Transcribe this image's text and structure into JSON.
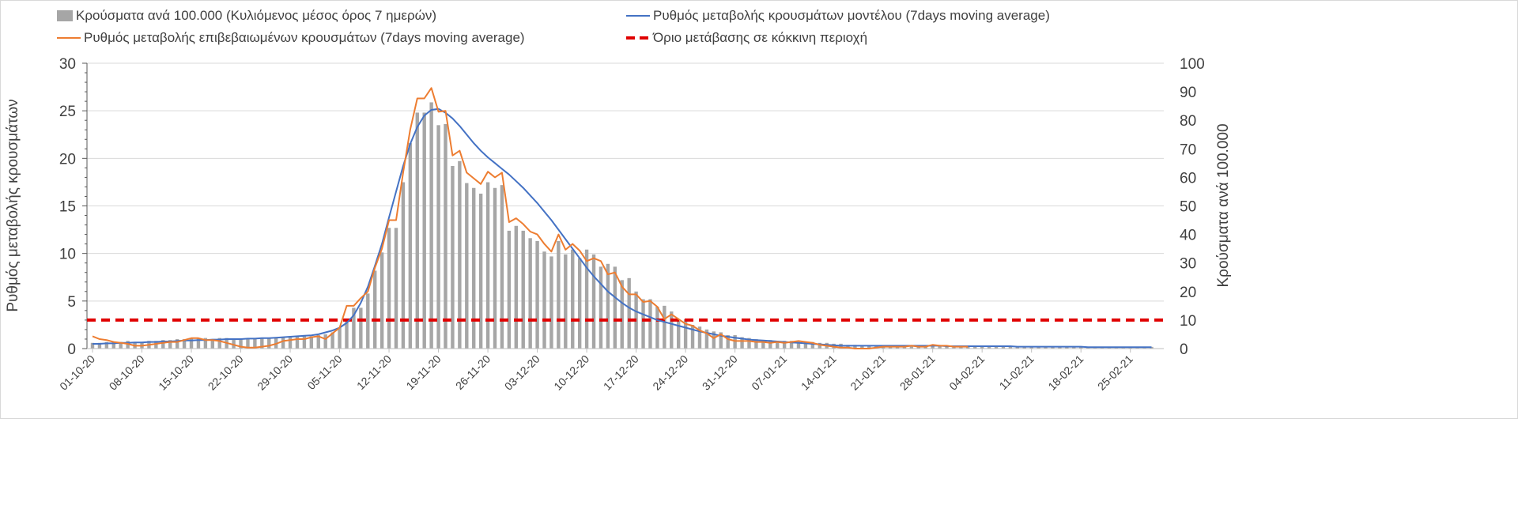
{
  "chart_data": {
    "type": "bar+line",
    "start_date": "01-10-20",
    "x_tick_labels": [
      "01-10-20",
      "08-10-20",
      "15-10-20",
      "22-10-20",
      "29-10-20",
      "05-11-20",
      "12-11-20",
      "19-11-20",
      "26-11-20",
      "03-12-20",
      "10-12-20",
      "17-12-20",
      "24-12-20",
      "31-12-20",
      "07-01-21",
      "14-01-21",
      "21-01-21",
      "28-01-21",
      "04-02-21",
      "11-02-21",
      "18-02-21",
      "25-02-21"
    ],
    "y_left": {
      "label": "Ρυθμός μεταβολής κρουσμάτων",
      "lim": [
        0,
        30
      ],
      "ticks": [
        "0",
        "5",
        "10",
        "15",
        "20",
        "25",
        "30"
      ]
    },
    "y_right": {
      "label": "Κρούσματα ανά 100.000",
      "lim": [
        0,
        100
      ],
      "ticks": [
        "0",
        "10",
        "20",
        "30",
        "40",
        "50",
        "60",
        "70",
        "80",
        "90",
        "100"
      ]
    },
    "grid": true,
    "legend_position": "top",
    "series": [
      {
        "name": "Κρούσματα ανά 100.000 (Κυλιόμενος μέσος όρος 7 ημερών)",
        "type": "bar",
        "axis": "right",
        "color": "#a6a6a6",
        "values": [
          2,
          2,
          2.3,
          2.3,
          2.3,
          2.7,
          2.3,
          2.3,
          2.7,
          2.7,
          3,
          3,
          3.3,
          3.3,
          3.7,
          3.7,
          3.7,
          3.3,
          3.7,
          3.7,
          3.3,
          3.3,
          3.3,
          3.7,
          3.7,
          3.7,
          4,
          4,
          4,
          4.3,
          4.3,
          4.3,
          4.7,
          5,
          5.7,
          7.3,
          10,
          14.3,
          14.3,
          19.3,
          27.3,
          33.7,
          42.3,
          42.3,
          58.3,
          72,
          82.7,
          82.7,
          86.3,
          78.3,
          78.7,
          64,
          65.7,
          58,
          56.3,
          54.3,
          58.3,
          56.3,
          57.3,
          41.3,
          43,
          41.3,
          38.7,
          37.7,
          34,
          32.3,
          37.7,
          33,
          34.7,
          31.7,
          34.7,
          33,
          28.7,
          29.7,
          28.7,
          24,
          24.7,
          20,
          17.3,
          17.3,
          14.7,
          15,
          13,
          9.7,
          10.3,
          8.3,
          7.7,
          6.7,
          6,
          5.7,
          4.7,
          4.7,
          4,
          3.7,
          3.3,
          3,
          3,
          2.7,
          2.7,
          2.7,
          2.3,
          2.3,
          2.3,
          2,
          2,
          1.7,
          1.7,
          1.3,
          1.3,
          1,
          1,
          1,
          1,
          1,
          1,
          1,
          1,
          1,
          1,
          1,
          1,
          0.8,
          0.8,
          0.8,
          0.8,
          0.8,
          0.8,
          0.8,
          0.8,
          0.8,
          0.8,
          0.7,
          0.7,
          0.7,
          0.7,
          0.7,
          0.7,
          0.7,
          0.7,
          0.7,
          0.7,
          0.6,
          0.6,
          0.6,
          0.6,
          0.6,
          0.6,
          0.6,
          0.6,
          0.6,
          0.6
        ]
      },
      {
        "name": "Ρυθμός μεταβολής κρουσμάτων μοντέλου (7days moving average)",
        "type": "line",
        "axis": "left",
        "color": "#4472c4",
        "values": [
          0.5,
          0.5,
          0.55,
          0.55,
          0.6,
          0.6,
          0.65,
          0.65,
          0.7,
          0.7,
          0.75,
          0.75,
          0.8,
          0.85,
          0.85,
          0.9,
          0.9,
          0.95,
          0.95,
          1.0,
          1.0,
          1.0,
          1.05,
          1.05,
          1.1,
          1.1,
          1.15,
          1.2,
          1.25,
          1.3,
          1.35,
          1.4,
          1.5,
          1.7,
          1.9,
          2.2,
          2.7,
          3.5,
          4.8,
          6.5,
          8.7,
          11,
          13.8,
          16.5,
          19.2,
          21.5,
          23.3,
          24.5,
          25.1,
          25.2,
          24.8,
          24.2,
          23.4,
          22.5,
          21.6,
          20.8,
          20.1,
          19.5,
          18.9,
          18.3,
          17.6,
          16.9,
          16.1,
          15.3,
          14.4,
          13.5,
          12.5,
          11.5,
          10.5,
          9.5,
          8.5,
          7.6,
          6.8,
          6.0,
          5.4,
          4.8,
          4.3,
          3.9,
          3.6,
          3.3,
          3.0,
          2.8,
          2.6,
          2.4,
          2.2,
          2.0,
          1.8,
          1.65,
          1.5,
          1.35,
          1.25,
          1.15,
          1.05,
          0.95,
          0.9,
          0.85,
          0.8,
          0.75,
          0.7,
          0.65,
          0.6,
          0.55,
          0.5,
          0.45,
          0.4,
          0.35,
          0.3,
          0.3,
          0.3,
          0.3,
          0.3,
          0.3,
          0.3,
          0.3,
          0.3,
          0.3,
          0.3,
          0.3,
          0.3,
          0.3,
          0.3,
          0.25,
          0.25,
          0.25,
          0.25,
          0.25,
          0.25,
          0.25,
          0.25,
          0.25,
          0.25,
          0.2,
          0.2,
          0.2,
          0.2,
          0.2,
          0.2,
          0.2,
          0.2,
          0.2,
          0.2,
          0.15,
          0.15,
          0.15,
          0.15,
          0.15,
          0.15,
          0.15,
          0.15,
          0.15,
          0.15
        ]
      },
      {
        "name": "Ρυθμός μεταβολής επιβεβαιωμένων κρουσμάτων (7days moving average)",
        "type": "line",
        "axis": "left",
        "color": "#ed7d31",
        "values": [
          1.3,
          1.0,
          0.9,
          0.7,
          0.6,
          0.5,
          0.3,
          0.3,
          0.4,
          0.5,
          0.6,
          0.7,
          0.7,
          0.9,
          1.1,
          1.1,
          0.9,
          0.9,
          0.8,
          0.6,
          0.4,
          0.2,
          0.1,
          0.1,
          0.2,
          0.3,
          0.5,
          0.8,
          0.9,
          1.0,
          1.0,
          1.2,
          1.3,
          1.0,
          1.6,
          2.2,
          4.5,
          4.5,
          5.3,
          6.0,
          8.5,
          10.5,
          13.5,
          13.5,
          18.5,
          23,
          26.3,
          26.3,
          27.4,
          24.9,
          25,
          20.3,
          20.8,
          18.5,
          17.9,
          17.3,
          18.6,
          18,
          18.5,
          13.3,
          13.7,
          13.1,
          12.3,
          12.0,
          11.0,
          10.2,
          12.0,
          10.4,
          11.0,
          10.3,
          9.2,
          9.5,
          9.2,
          7.8,
          8.0,
          6.5,
          5.7,
          5.7,
          4.9,
          5.0,
          4.4,
          3.1,
          3.6,
          3.1,
          2.6,
          2.4,
          1.9,
          1.6,
          1.1,
          1.5,
          1.0,
          0.8,
          0.8,
          0.8,
          0.7,
          0.7,
          0.6,
          0.7,
          0.6,
          0.7,
          0.8,
          0.7,
          0.6,
          0.4,
          0.3,
          0.2,
          0.1,
          0.1,
          0,
          0,
          0,
          0.1,
          0.2,
          0.2,
          0.2,
          0.2,
          0.3,
          0.2,
          0.2,
          0.4,
          0.3,
          0.3,
          0.2,
          0.2,
          0.2
        ]
      },
      {
        "name": "Όριο μετάβασης σε κόκκινη περιοχή",
        "type": "threshold",
        "axis": "right",
        "color": "#e00000",
        "value": 10
      }
    ]
  }
}
